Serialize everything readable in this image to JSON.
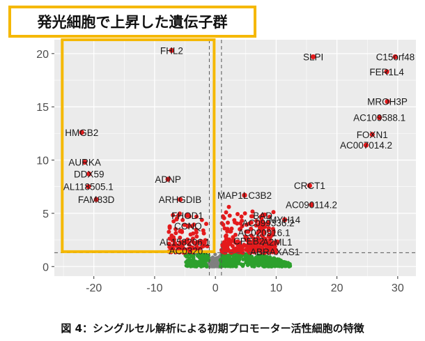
{
  "colors": {
    "panel_bg": "#ebebeb",
    "grid_major": "#ffffff",
    "up_points": "#e41a1c",
    "mid_points": "#2ca02c",
    "ns_points": "#7f7f7f",
    "highlight_box": "#f5b800",
    "threshold_line": "#555555"
  },
  "banner": {
    "text": "発光細胞で上昇した遺伝子群"
  },
  "caption": {
    "text": "図 4：シングルセル解析による初期プロモーター活性細胞の特徴"
  },
  "chart_data": {
    "type": "scatter",
    "title": "",
    "xlabel": "",
    "ylabel": "",
    "xlim": [
      -26.5,
      33
    ],
    "ylim": [
      -0.9,
      21.3
    ],
    "x_ticks": [
      -20,
      -10,
      0,
      10,
      20,
      30
    ],
    "y_ticks": [
      0,
      5,
      10,
      15,
      20
    ],
    "grid": true,
    "thresholds": {
      "x": [
        -1,
        1
      ],
      "y": 1.3
    },
    "highlight_region": {
      "x": [
        -25.2,
        -0.2
      ],
      "y": [
        1.4,
        21.3
      ]
    },
    "labeled_points": [
      {
        "label": "FHL2",
        "x": -7.2,
        "y": 20.3
      },
      {
        "label": "SLPI",
        "x": 16.1,
        "y": 19.7
      },
      {
        "label": "C15orf48",
        "x": 29.6,
        "y": 19.7
      },
      {
        "label": "FER1L4",
        "x": 28.2,
        "y": 18.3
      },
      {
        "label": "MROH3P",
        "x": 28.3,
        "y": 15.5
      },
      {
        "label": "AC109588.1",
        "x": 27.0,
        "y": 14.0
      },
      {
        "label": "FOXN1",
        "x": 25.8,
        "y": 12.4
      },
      {
        "label": "AC007014.2",
        "x": 24.8,
        "y": 11.4
      },
      {
        "label": "HMGB2",
        "x": -22.0,
        "y": 12.6
      },
      {
        "label": "AURKA",
        "x": -21.5,
        "y": 9.8
      },
      {
        "label": "DDX59",
        "x": -20.8,
        "y": 8.7
      },
      {
        "label": "AL118505.1",
        "x": -20.9,
        "y": 7.5
      },
      {
        "label": "FAM83D",
        "x": -19.6,
        "y": 6.3
      },
      {
        "label": "ADNP",
        "x": -7.8,
        "y": 8.2
      },
      {
        "label": "ARHGDIB",
        "x": -5.8,
        "y": 6.3
      },
      {
        "label": "FHOD1",
        "x": -4.6,
        "y": 4.8
      },
      {
        "label": "CCNQ",
        "x": -4.5,
        "y": 3.8
      },
      {
        "label": "AL158206.1",
        "x": -5.0,
        "y": 2.3
      },
      {
        "label": "AC0320...",
        "x": -4.2,
        "y": 1.5
      },
      {
        "label": "MAP1LC3B2",
        "x": 4.8,
        "y": 6.7
      },
      {
        "label": "CRCT1",
        "x": 15.5,
        "y": 7.6
      },
      {
        "label": "BAD",
        "x": 7.8,
        "y": 4.8
      },
      {
        "label": "AC090114.2",
        "x": 15.8,
        "y": 5.8
      },
      {
        "label": "AC099336.2",
        "x": 8.7,
        "y": 4.1
      },
      {
        "label": "MYH14",
        "x": 11.4,
        "y": 4.4
      },
      {
        "label": "AC020916.1",
        "x": 8.0,
        "y": 3.2
      },
      {
        "label": "CPEB2",
        "x": 5.5,
        "y": 2.4
      },
      {
        "label": "A2ML1",
        "x": 10.2,
        "y": 2.3
      },
      {
        "label": "ABRAXAS1",
        "x": 9.8,
        "y": 1.4
      }
    ]
  }
}
